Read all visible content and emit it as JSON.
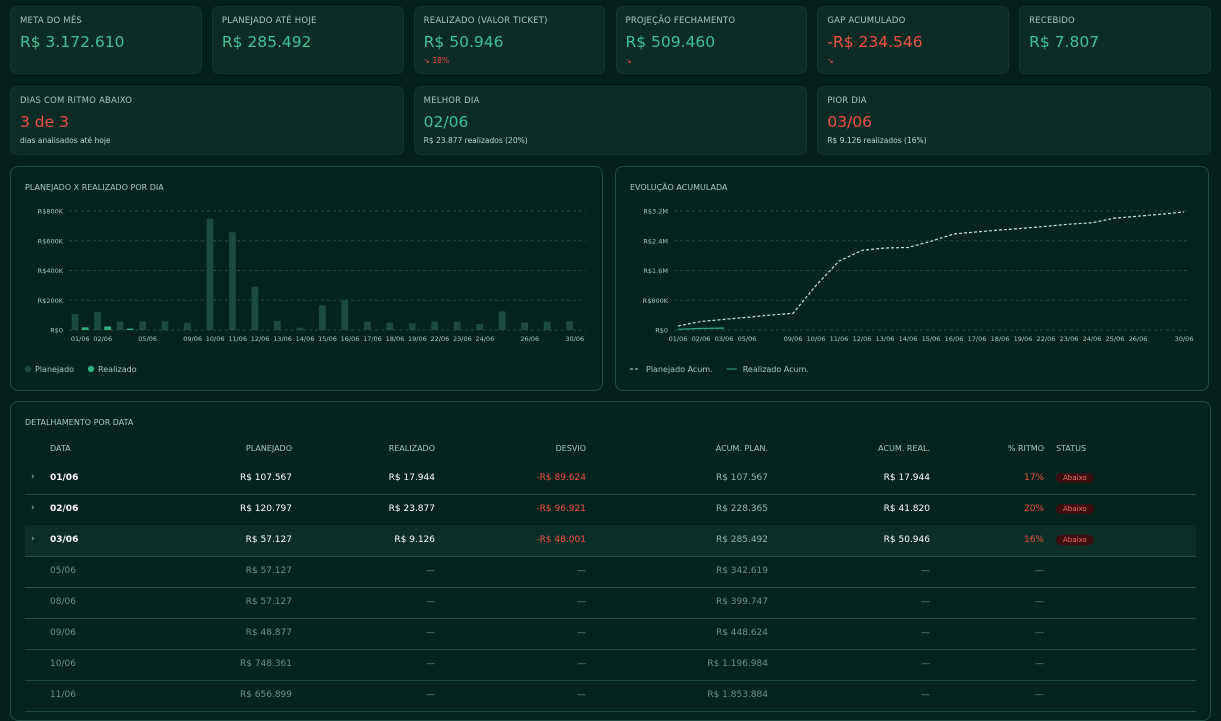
{
  "kpis": [
    {
      "label": "META DO MÊS",
      "value": "R$ 3.172.610",
      "color": "#3fc09a"
    },
    {
      "label": "PLANEJADO ATÉ HOJE",
      "value": "R$ 285.492",
      "color": "#3fc09a"
    },
    {
      "label": "REALIZADO (VALOR TICKET)",
      "value": "R$ 50.946",
      "sub": "↘ 18%",
      "color": "#3fc09a"
    },
    {
      "label": "PROJEÇÃO FECHAMENTO",
      "value": "R$ 509.460",
      "sub": "↘",
      "color": "#3fc09a"
    },
    {
      "label": "GAP ACUMULADO",
      "value": "-R$ 234.546",
      "sub": "↘",
      "color": "#f0504a"
    },
    {
      "label": "RECEBIDO",
      "value": "R$ 7.807",
      "color": "#3fc09a"
    }
  ],
  "summary": [
    {
      "label": "DIAS COM RITMO ABAIXO",
      "value": "3 de 3",
      "sub": "dias analisados até hoje",
      "color": "#f0504a"
    },
    {
      "label": "MELHOR DIA",
      "value": "02/06",
      "sub": "R$ 23.877 realizados (20%)",
      "color": "#3fc09a"
    },
    {
      "label": "PIOR DIA",
      "value": "03/06",
      "sub": "R$ 9.126 realizados (16%)",
      "color": "#f0504a"
    }
  ],
  "chart_data": [
    {
      "type": "bar",
      "title": "PLANEJADO X REALIZADO POR DIA",
      "categories": [
        "01/06",
        "02/06",
        null,
        "05/06",
        null,
        "09/06",
        "10/06",
        "11/06",
        "12/06",
        "13/06",
        "14/06",
        "15/06",
        "16/06",
        "17/06",
        "18/06",
        "19/06",
        "22/06",
        "23/06",
        "24/06",
        null,
        "26/06",
        null,
        "30/06"
      ],
      "series": [
        {
          "name": "Planejado",
          "color": "#1d4a40",
          "values": [
            107567,
            120797,
            57127,
            57127,
            57127,
            48877,
            748361,
            656899,
            290000,
            60000,
            15000,
            165000,
            200000,
            55000,
            50000,
            45000,
            55000,
            55000,
            40000,
            125000,
            50000,
            55000,
            58726
          ]
        },
        {
          "name": "Realizado",
          "color": "#2fae7e",
          "values": [
            17944,
            23877,
            9126,
            null,
            null,
            null,
            null,
            null,
            null,
            null,
            null,
            null,
            null,
            null,
            null,
            null,
            null,
            null,
            null,
            null,
            null,
            null,
            null
          ]
        }
      ],
      "ylim": [
        0,
        800000
      ],
      "yticks": [
        {
          "value": 0,
          "label": "R$0"
        },
        {
          "value": 200000,
          "label": "R$200K"
        },
        {
          "value": 400000,
          "label": "R$400K"
        },
        {
          "value": 600000,
          "label": "R$600K"
        },
        {
          "value": 800000,
          "label": "R$800K"
        }
      ],
      "grid": true
    },
    {
      "type": "line",
      "title": "EVOLUÇÃO ACUMULADA",
      "categories": [
        "01/06",
        "02/06",
        "03/06",
        "05/06",
        null,
        "09/06",
        "10/06",
        "11/06",
        "12/06",
        "13/06",
        "14/06",
        "15/06",
        "16/06",
        "17/06",
        "18/06",
        "19/06",
        "22/06",
        "23/06",
        "24/06",
        "25/06",
        "26/06",
        null,
        "30/06"
      ],
      "series": [
        {
          "name": "Planejado Acum.",
          "color": "#c5e6da",
          "dashed": true,
          "values": [
            107567,
            228365,
            285492,
            342619,
            399747,
            448624,
            1196984,
            1853884,
            2143884,
            2203884,
            2218884,
            2383884,
            2583884,
            2638884,
            2688884,
            2733884,
            2788884,
            2843884,
            2883884,
            3008884,
            3058884,
            3113884,
            3172610
          ]
        },
        {
          "name": "Realizado Acum.",
          "color": "#2fae7e",
          "dashed": false,
          "values": [
            17944,
            41820,
            50946,
            null,
            null,
            null,
            null,
            null,
            null,
            null,
            null,
            null,
            null,
            null,
            null,
            null,
            null,
            null,
            null,
            null,
            null,
            null,
            null
          ]
        }
      ],
      "ylim": [
        0,
        3200000
      ],
      "yticks": [
        {
          "value": 0,
          "label": "R$0"
        },
        {
          "value": 800000,
          "label": "R$800K"
        },
        {
          "value": 1600000,
          "label": "R$1.6M"
        },
        {
          "value": 2400000,
          "label": "R$2.4M"
        },
        {
          "value": 3200000,
          "label": "R$3.2M"
        }
      ],
      "grid": true
    }
  ],
  "table": {
    "title": "DETALHAMENTO POR DATA",
    "headers": [
      "DATA",
      "PLANEJADO",
      "REALIZADO",
      "DESVIO",
      "ACUM. PLAN.",
      "ACUM. REAL.",
      "% RITMO",
      "STATUS"
    ],
    "rows": [
      {
        "date": "01/06",
        "planned": "R$ 107.567",
        "realized": "R$ 17.944",
        "deviation": "-R$ 89.624",
        "acum_plan": "R$ 107.567",
        "acum_real": "R$ 17.944",
        "ritmo": "17%",
        "status": "Abaixo"
      },
      {
        "date": "02/06",
        "planned": "R$ 120.797",
        "realized": "R$ 23.877",
        "deviation": "-R$ 96.921",
        "acum_plan": "R$ 228.365",
        "acum_real": "R$ 41.820",
        "ritmo": "20%",
        "status": "Abaixo"
      },
      {
        "date": "03/06",
        "planned": "R$ 57.127",
        "realized": "R$ 9.126",
        "deviation": "-R$ 48.001",
        "acum_plan": "R$ 285.492",
        "acum_real": "R$ 50.946",
        "ritmo": "16%",
        "status": "Abaixo"
      },
      {
        "date": "05/06",
        "planned": "R$ 57.127",
        "realized": "—",
        "deviation": "—",
        "acum_plan": "R$ 342.619",
        "acum_real": "—",
        "ritmo": "—"
      },
      {
        "date": "08/06",
        "planned": "R$ 57.127",
        "realized": "—",
        "deviation": "—",
        "acum_plan": "R$ 399.747",
        "acum_real": "—",
        "ritmo": "—"
      },
      {
        "date": "09/06",
        "planned": "R$ 48.877",
        "realized": "—",
        "deviation": "—",
        "acum_plan": "R$ 448.624",
        "acum_real": "—",
        "ritmo": "—"
      },
      {
        "date": "10/06",
        "planned": "R$ 748.361",
        "realized": "—",
        "deviation": "—",
        "acum_plan": "R$ 1.196.984",
        "acum_real": "—",
        "ritmo": "—"
      },
      {
        "date": "11/06",
        "planned": "R$ 656.899",
        "realized": "—",
        "deviation": "—",
        "acum_plan": "R$ 1.853.884",
        "acum_real": "—",
        "ritmo": "—"
      }
    ]
  }
}
